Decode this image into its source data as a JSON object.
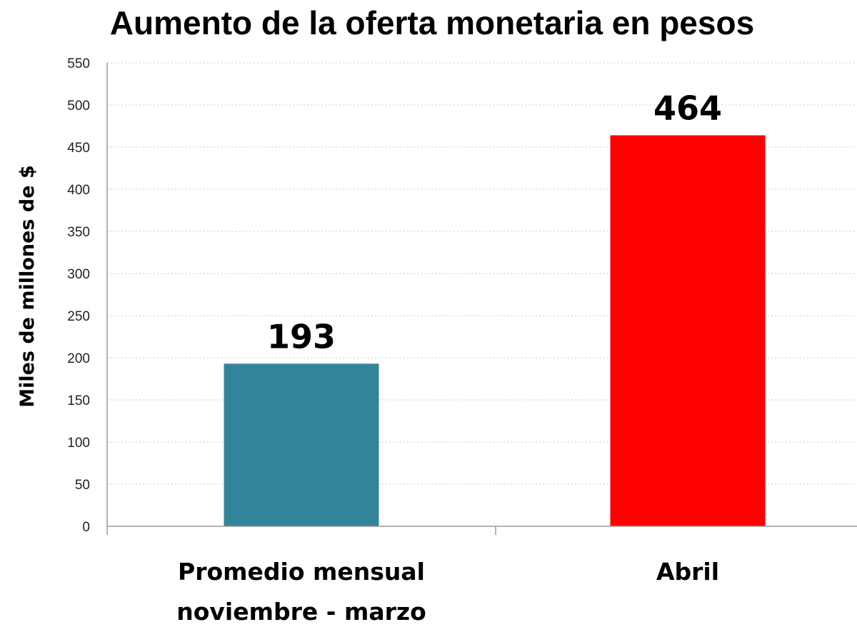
{
  "chart_data": {
    "type": "bar",
    "title": "Aumento de la oferta monetaria en pesos",
    "ylabel": "Miles de millones de $",
    "xlabel": "",
    "categories": [
      [
        "Promedio mensual",
        "noviembre - marzo"
      ],
      [
        "Abril"
      ]
    ],
    "values": [
      193,
      464
    ],
    "data_labels": [
      "193",
      "464"
    ],
    "bar_colors": [
      "#33849b",
      "#ff0000"
    ],
    "ylim": [
      0,
      550
    ],
    "yticks": [
      0,
      50,
      100,
      150,
      200,
      250,
      300,
      350,
      400,
      450,
      500,
      550
    ],
    "grid": true,
    "legend": "none"
  }
}
